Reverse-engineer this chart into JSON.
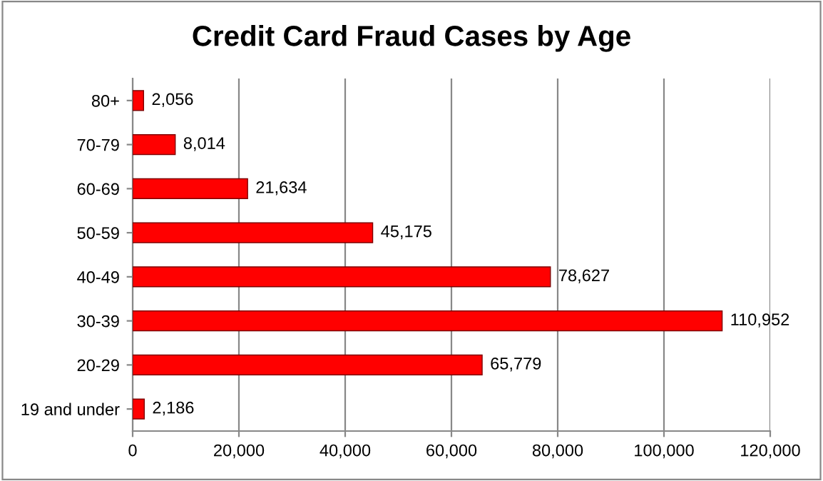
{
  "chart_data": {
    "type": "bar",
    "orientation": "horizontal",
    "title": "Credit Card Fraud Cases by Age",
    "categories": [
      "80+",
      "70-79",
      "60-69",
      "50-59",
      "40-49",
      "30-39",
      "20-29",
      "19 and under"
    ],
    "values": [
      2056,
      8014,
      21634,
      45175,
      78627,
      110952,
      65779,
      2186
    ],
    "value_labels": [
      "2,056",
      "8,014",
      "21,634",
      "45,175",
      "78,627",
      "110,952",
      "65,779",
      "2,186"
    ],
    "color": "#ff0000",
    "xlim": [
      0,
      120000
    ],
    "xticks": [
      0,
      {
        "value": 20000,
        "label": "20,000"
      },
      {
        "value": 40000,
        "label": "40,000"
      },
      {
        "value": 60000,
        "label": "60,000"
      },
      {
        "value": 80000,
        "label": "80,000"
      },
      {
        "value": 100000,
        "label": "100,000"
      },
      {
        "value": 120000,
        "label": "120,000"
      }
    ],
    "grid": "x",
    "legend": false
  }
}
